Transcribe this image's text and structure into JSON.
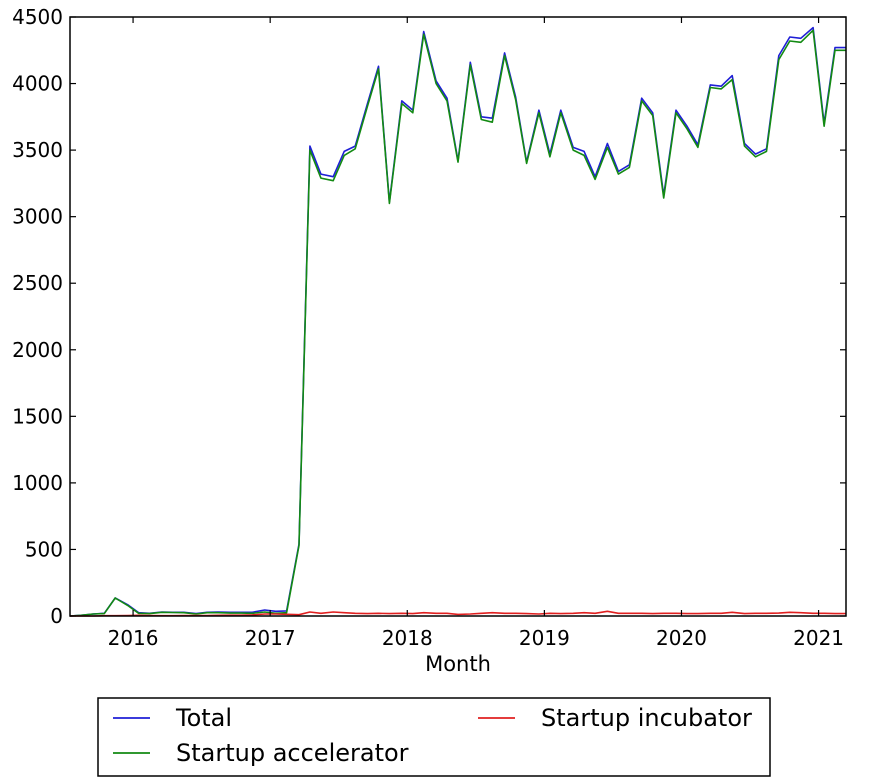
{
  "chart_data": {
    "type": "line",
    "title": "",
    "xlabel": "Month",
    "ylabel": "",
    "xlim": [
      2015.54,
      2021.2
    ],
    "ylim": [
      0,
      4500
    ],
    "grid": false,
    "legend_position": "bottom-outside",
    "x_ticks": [
      {
        "value": 2016,
        "label": "2016"
      },
      {
        "value": 2017,
        "label": "2017"
      },
      {
        "value": 2018,
        "label": "2018"
      },
      {
        "value": 2019,
        "label": "2019"
      },
      {
        "value": 2020,
        "label": "2020"
      },
      {
        "value": 2021,
        "label": "2021"
      }
    ],
    "y_ticks": [
      {
        "value": 0,
        "label": "0"
      },
      {
        "value": 500,
        "label": "500"
      },
      {
        "value": 1000,
        "label": "1000"
      },
      {
        "value": 1500,
        "label": "1500"
      },
      {
        "value": 2000,
        "label": "2000"
      },
      {
        "value": 2500,
        "label": "2500"
      },
      {
        "value": 3000,
        "label": "3000"
      },
      {
        "value": 3500,
        "label": "3500"
      },
      {
        "value": 4000,
        "label": "4000"
      },
      {
        "value": 4500,
        "label": "4500"
      }
    ],
    "x": [
      2015.54,
      2015.62,
      2015.71,
      2015.79,
      2015.87,
      2015.96,
      2016.04,
      2016.12,
      2016.21,
      2016.29,
      2016.37,
      2016.46,
      2016.54,
      2016.62,
      2016.71,
      2016.79,
      2016.87,
      2016.96,
      2017.04,
      2017.12,
      2017.21,
      2017.29,
      2017.37,
      2017.46,
      2017.54,
      2017.62,
      2017.71,
      2017.79,
      2017.87,
      2017.96,
      2018.04,
      2018.12,
      2018.21,
      2018.29,
      2018.37,
      2018.46,
      2018.54,
      2018.62,
      2018.71,
      2018.79,
      2018.87,
      2018.96,
      2019.04,
      2019.12,
      2019.21,
      2019.29,
      2019.37,
      2019.46,
      2019.54,
      2019.62,
      2019.71,
      2019.79,
      2019.87,
      2019.96,
      2020.04,
      2020.12,
      2020.21,
      2020.29,
      2020.37,
      2020.46,
      2020.54,
      2020.62,
      2020.71,
      2020.79,
      2020.87,
      2020.96,
      2021.04,
      2021.12,
      2021.2
    ],
    "series": [
      {
        "name": "Total",
        "color": "#1f1fd6",
        "values": [
          0,
          5,
          15,
          20,
          135,
          85,
          25,
          20,
          30,
          28,
          28,
          18,
          28,
          30,
          28,
          28,
          28,
          45,
          35,
          38,
          540,
          3530,
          3320,
          3300,
          3490,
          3530,
          3850,
          4130,
          3110,
          3870,
          3800,
          4390,
          4020,
          3890,
          3420,
          4160,
          3750,
          3740,
          4230,
          3900,
          3410,
          3800,
          3470,
          3800,
          3520,
          3490,
          3300,
          3550,
          3340,
          3390,
          3890,
          3780,
          3160,
          3800,
          3680,
          3540,
          3990,
          3980,
          4060,
          3550,
          3470,
          3510,
          4210,
          4350,
          4340,
          4420,
          3700,
          4270,
          4270
        ]
      },
      {
        "name": "Startup accelerator",
        "color": "#138a13",
        "values": [
          0,
          5,
          15,
          18,
          135,
          80,
          20,
          18,
          28,
          26,
          25,
          15,
          25,
          25,
          22,
          22,
          20,
          30,
          20,
          25,
          530,
          3500,
          3290,
          3270,
          3460,
          3510,
          3830,
          4110,
          3100,
          3850,
          3780,
          4370,
          4000,
          3870,
          3410,
          4140,
          3730,
          3710,
          4210,
          3880,
          3400,
          3780,
          3450,
          3780,
          3500,
          3460,
          3280,
          3520,
          3320,
          3370,
          3870,
          3760,
          3140,
          3780,
          3660,
          3520,
          3970,
          3960,
          4030,
          3530,
          3450,
          3490,
          4180,
          4320,
          4310,
          4400,
          3680,
          4250,
          4250
        ]
      },
      {
        "name": "Startup incubator",
        "color": "#e02020",
        "values": [
          0,
          0,
          0,
          2,
          2,
          3,
          5,
          3,
          2,
          2,
          3,
          3,
          3,
          5,
          6,
          6,
          8,
          15,
          15,
          13,
          10,
          30,
          20,
          30,
          25,
          20,
          18,
          20,
          18,
          20,
          18,
          25,
          20,
          20,
          12,
          15,
          20,
          25,
          20,
          20,
          18,
          15,
          20,
          18,
          20,
          25,
          20,
          35,
          20,
          20,
          20,
          18,
          20,
          20,
          18,
          18,
          20,
          20,
          28,
          18,
          20,
          20,
          22,
          28,
          25,
          20,
          20,
          18,
          18
        ]
      }
    ]
  }
}
